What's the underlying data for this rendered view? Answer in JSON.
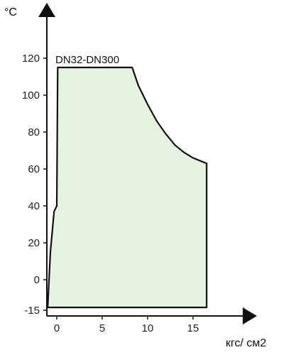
{
  "chart_data": {
    "type": "area",
    "title": "",
    "ylabel": "°C",
    "xlabel": "кгс/ см2",
    "series": [
      {
        "name": "DN32-DN300",
        "points": [
          [
            -1,
            -15
          ],
          [
            -0.7,
            15
          ],
          [
            -0.3,
            37
          ],
          [
            0,
            40
          ],
          [
            0.1,
            115
          ],
          [
            8.3,
            115
          ],
          [
            9,
            105
          ],
          [
            10,
            95
          ],
          [
            11,
            86
          ],
          [
            12,
            79
          ],
          [
            13,
            73
          ],
          [
            14,
            69
          ],
          [
            15,
            66
          ],
          [
            16.5,
            63
          ],
          [
            16.5,
            -15
          ]
        ]
      }
    ],
    "x_ticks": [
      "0",
      "5",
      "10",
      "15"
    ],
    "x_tick_values": [
      0,
      5,
      10,
      15
    ],
    "y_ticks": [
      "-15",
      "0",
      "20",
      "40",
      "60",
      "80",
      "100",
      "120"
    ],
    "y_tick_values": [
      -15,
      0,
      20,
      40,
      60,
      80,
      100,
      120
    ],
    "xlim": [
      -1,
      21
    ],
    "ylim": [
      -15,
      135
    ],
    "grid": false,
    "colors": {
      "fill": "#e4f2df",
      "outline": "#111111",
      "axis": "#111111"
    }
  }
}
